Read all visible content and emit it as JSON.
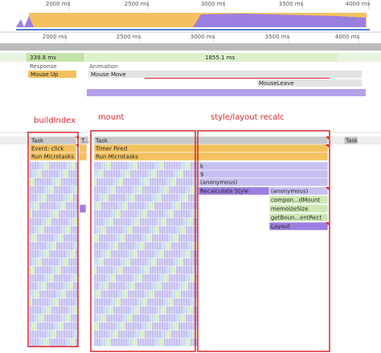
{
  "overview_ruler": [
    "2000 ms",
    "2500 ms",
    "3000 ms",
    "3500 ms",
    "4000 ms"
  ],
  "main_ruler": [
    "2000 ms",
    "2500 ms",
    "3000 ms",
    "3500 ms",
    "4000 ms"
  ],
  "frames": [
    "339.8 ms",
    "1855.1 ms"
  ],
  "interactions": {
    "labels": [
      "Response",
      "Animation"
    ],
    "events": [
      "Mouse Up",
      "Mouse Move",
      "MouseLeave"
    ]
  },
  "annotations": [
    "buildIndex",
    "mount",
    "style/layout recalc"
  ],
  "flame": {
    "tasks": [
      "Task",
      "T...",
      "Task",
      "Task"
    ],
    "left": [
      "Event: click",
      "Run Microtasks"
    ],
    "middle": [
      "Timer Fired",
      "Run Microtasks"
    ],
    "right": [
      "k",
      "$",
      "(anonymous)",
      "Recalculate Style",
      "(anonymous)",
      "compon...dMount",
      "memoizeSize",
      "getBoun...entRect",
      "Layout"
    ]
  }
}
